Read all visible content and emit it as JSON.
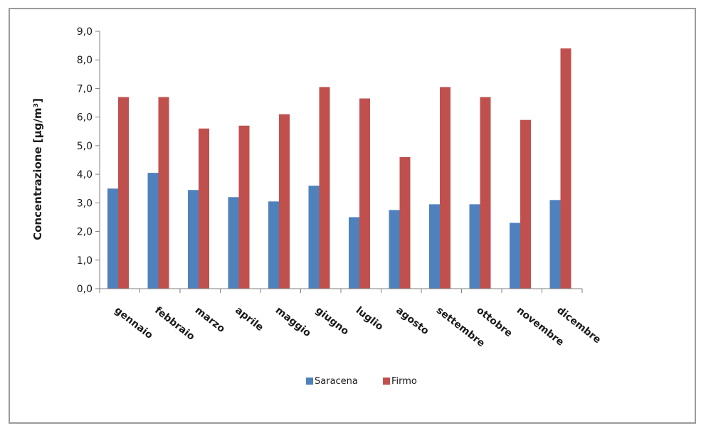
{
  "chart_data": {
    "type": "bar",
    "title": "",
    "xlabel": "",
    "ylabel": "Concentrazione [µg/m³]",
    "ylim": [
      0,
      9
    ],
    "ytick_step": 1,
    "ytick_labels": [
      "0,0",
      "1,0",
      "2,0",
      "3,0",
      "4,0",
      "5,0",
      "6,0",
      "7,0",
      "8,0",
      "9,0"
    ],
    "grid": false,
    "legend_position": "bottom",
    "categories": [
      "gennaio",
      "febbraio",
      "marzo",
      "aprile",
      "maggio",
      "giugno",
      "luglio",
      "agosto",
      "settembre",
      "ottobre",
      "novembre",
      "dicembre"
    ],
    "series": [
      {
        "name": "Saracena",
        "color": "#4f81bd",
        "values": [
          3.5,
          4.05,
          3.45,
          3.2,
          3.05,
          3.6,
          2.5,
          2.75,
          2.95,
          2.95,
          2.3,
          3.1
        ]
      },
      {
        "name": "Firmo",
        "color": "#c0504d",
        "values": [
          6.7,
          6.7,
          5.6,
          5.7,
          6.1,
          7.05,
          6.65,
          4.6,
          7.05,
          6.7,
          5.9,
          8.4
        ]
      }
    ]
  }
}
